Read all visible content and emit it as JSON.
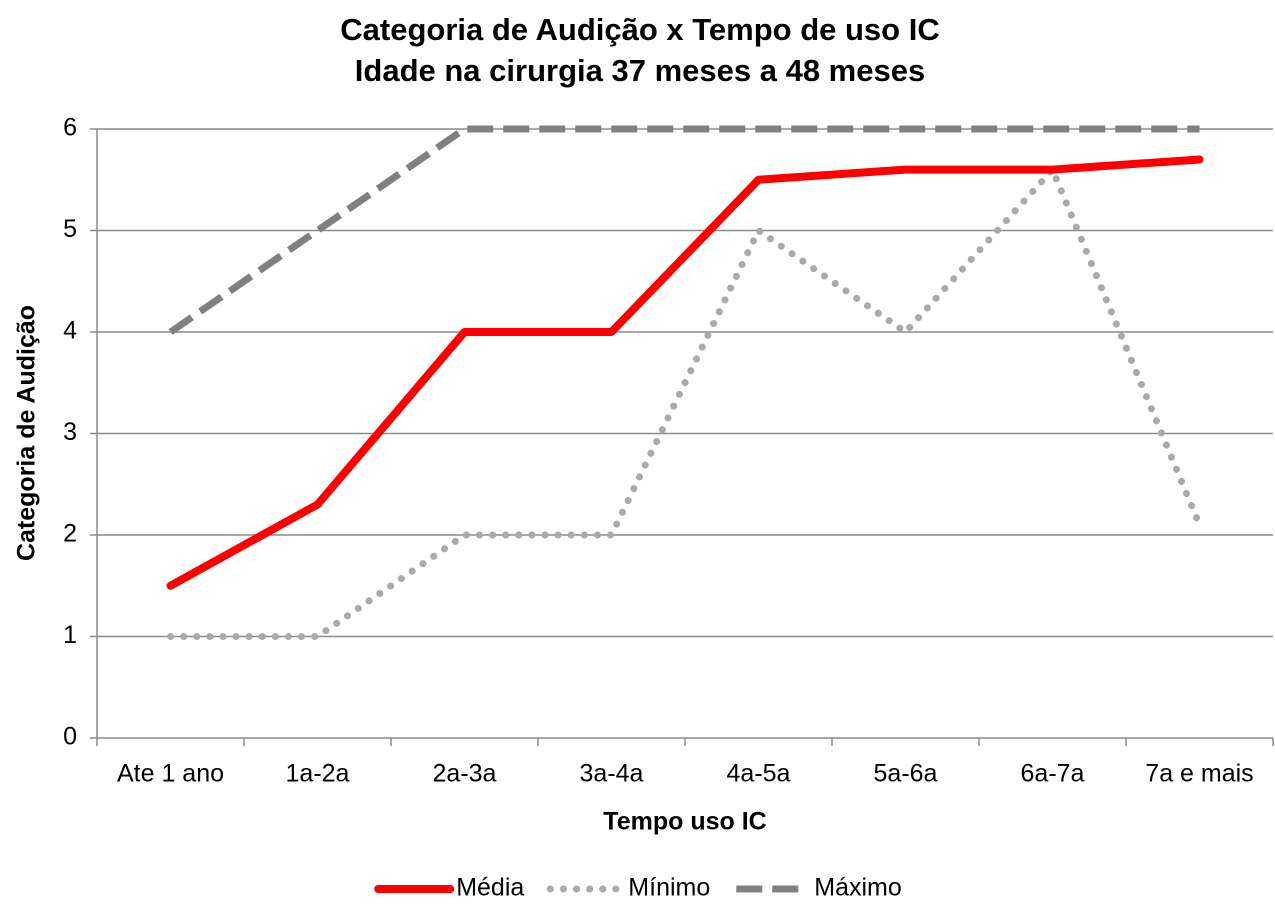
{
  "chart_data": {
    "type": "line",
    "title": "Categoria de Audição x Tempo de uso IC",
    "subtitle": "Idade na cirurgia 37 meses a 48 meses",
    "x_label": "Tempo uso IC",
    "y_label": "Categoria de Audição",
    "categories": [
      "Ate 1 ano",
      "1a-2a",
      "2a-3a",
      "3a-4a",
      "4a-5a",
      "5a-6a",
      "6a-7a",
      "7a e mais"
    ],
    "series": [
      {
        "name": "Média",
        "color": "#ff0000",
        "style": "solid",
        "values": [
          1.5,
          2.3,
          4,
          4,
          5.5,
          5.6,
          5.6,
          5.7
        ]
      },
      {
        "name": "Mínimo",
        "color": "#aaaaaa",
        "style": "dotted",
        "values": [
          1,
          1,
          2,
          2,
          5,
          4,
          5.6,
          2.1
        ]
      },
      {
        "name": "Máximo",
        "color": "#808080",
        "style": "dashed",
        "values": [
          4,
          5,
          6,
          6,
          6,
          6,
          6,
          6
        ]
      }
    ],
    "ylim": [
      0,
      6
    ],
    "yticks": [
      0,
      1,
      2,
      3,
      4,
      5,
      6
    ],
    "grid": true,
    "legend": "bottom"
  }
}
